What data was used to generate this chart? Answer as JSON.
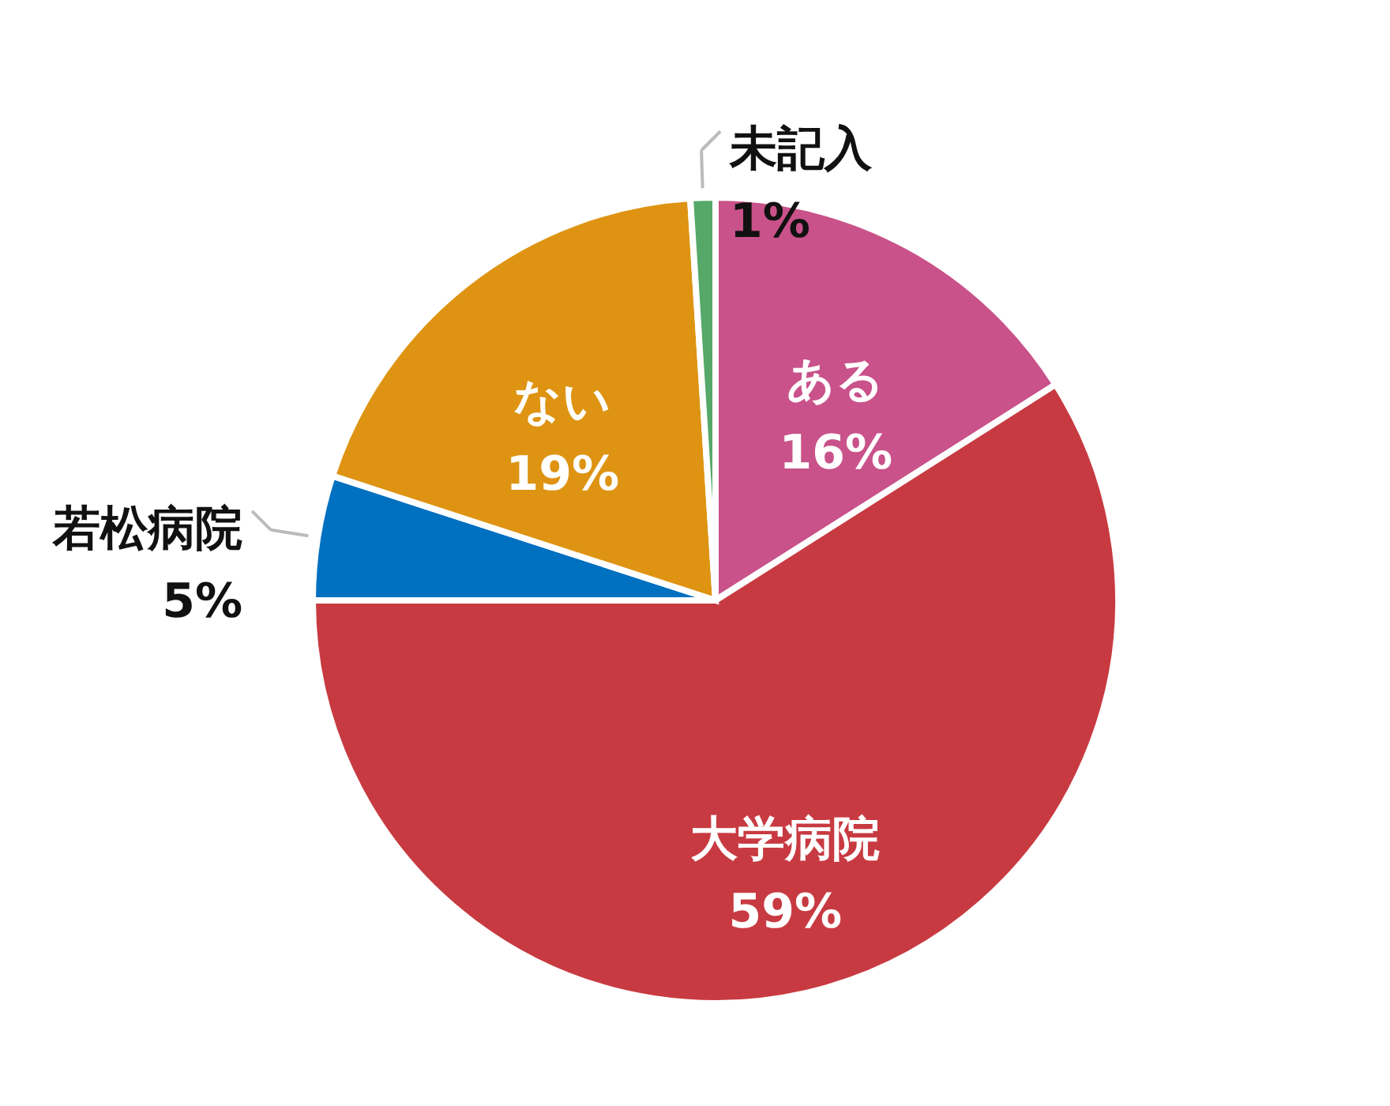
{
  "chart_data": {
    "type": "pie",
    "categories": [
      "ある",
      "大学病院",
      "若松病院",
      "ない",
      "未記入"
    ],
    "values": [
      16,
      59,
      5,
      19,
      1
    ],
    "value_labels": [
      "16%",
      "59%",
      "5%",
      "19%",
      "1%"
    ],
    "colors": [
      "#c9528a",
      "#c83a41",
      "#0070c0",
      "#de9412",
      "#55a868"
    ],
    "legend": false
  }
}
